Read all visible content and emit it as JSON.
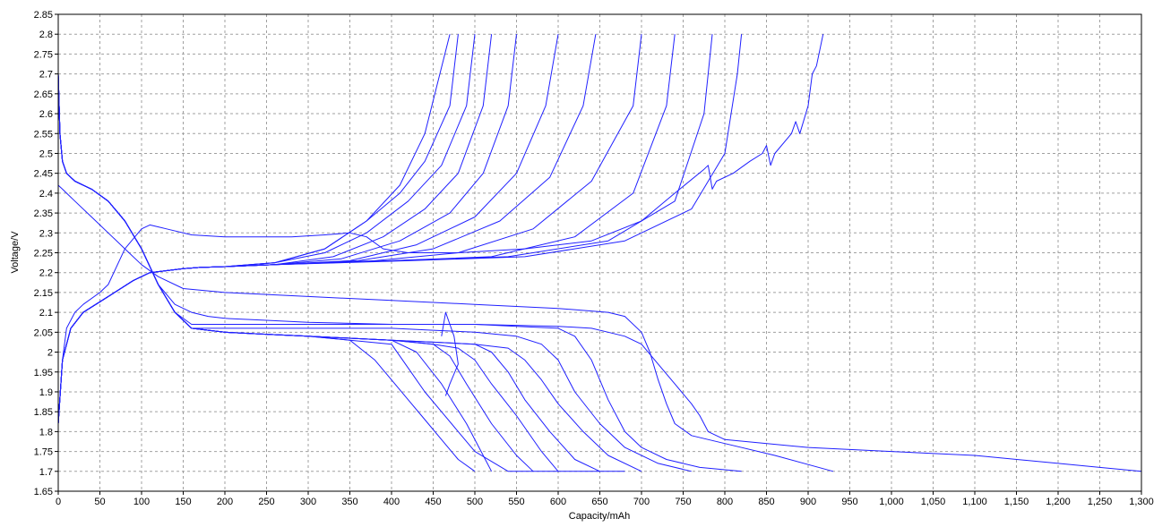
{
  "chart_data": {
    "type": "line",
    "title": "",
    "xlabel": "Capacity/mAh",
    "ylabel": "Voltage/V",
    "xlim": [
      0,
      1300
    ],
    "ylim": [
      1.65,
      2.85
    ],
    "grid": true,
    "line_color": "#2020ff",
    "x_ticks": [
      "0",
      "50",
      "100",
      "150",
      "200",
      "250",
      "300",
      "350",
      "400",
      "450",
      "500",
      "550",
      "600",
      "650",
      "700",
      "750",
      "800",
      "850",
      "900",
      "950",
      "1,000",
      "1,050",
      "1,100",
      "1,150",
      "1,200",
      "1,250",
      "1,300"
    ],
    "y_ticks": [
      "1.65",
      "1.7",
      "1.75",
      "1.8",
      "1.85",
      "1.9",
      "1.95",
      "2",
      "2.05",
      "2.1",
      "2.15",
      "2.2",
      "2.25",
      "2.3",
      "2.35",
      "2.4",
      "2.45",
      "2.5",
      "2.55",
      "2.6",
      "2.65",
      "2.7",
      "2.75",
      "2.8",
      "2.85"
    ],
    "series": [
      {
        "x": [
          0,
          5,
          15,
          30,
          60,
          90,
          110,
          130,
          150,
          170,
          200,
          260,
          320,
          370,
          410,
          440,
          470
        ],
        "y": [
          1.82,
          1.98,
          2.06,
          2.1,
          2.14,
          2.18,
          2.2,
          2.205,
          2.21,
          2.213,
          2.215,
          2.225,
          2.26,
          2.33,
          2.42,
          2.55,
          2.8
        ]
      },
      {
        "x": [
          0,
          5,
          15,
          30,
          60,
          90,
          110,
          130,
          150,
          170,
          200,
          260,
          320,
          370,
          410,
          440,
          470,
          480
        ],
        "y": [
          1.82,
          1.98,
          2.06,
          2.1,
          2.14,
          2.18,
          2.2,
          2.205,
          2.21,
          2.213,
          2.215,
          2.225,
          2.26,
          2.33,
          2.4,
          2.48,
          2.62,
          2.8
        ]
      },
      {
        "x": [
          0,
          5,
          15,
          30,
          60,
          90,
          110,
          130,
          150,
          170,
          200,
          260,
          320,
          370,
          420,
          460,
          490,
          500
        ],
        "y": [
          1.82,
          1.98,
          2.06,
          2.1,
          2.14,
          2.18,
          2.2,
          2.205,
          2.21,
          2.213,
          2.215,
          2.225,
          2.25,
          2.3,
          2.38,
          2.47,
          2.62,
          2.8
        ]
      },
      {
        "x": [
          0,
          5,
          15,
          30,
          60,
          90,
          110,
          130,
          150,
          170,
          200,
          260,
          330,
          390,
          440,
          480,
          510,
          520
        ],
        "y": [
          1.82,
          1.98,
          2.06,
          2.1,
          2.14,
          2.18,
          2.2,
          2.205,
          2.21,
          2.213,
          2.215,
          2.22,
          2.24,
          2.29,
          2.36,
          2.45,
          2.62,
          2.8
        ]
      },
      {
        "x": [
          0,
          5,
          15,
          30,
          60,
          90,
          110,
          130,
          150,
          170,
          200,
          260,
          340,
          410,
          470,
          510,
          540,
          550
        ],
        "y": [
          1.82,
          1.98,
          2.06,
          2.1,
          2.14,
          2.18,
          2.2,
          2.205,
          2.21,
          2.213,
          2.215,
          2.22,
          2.235,
          2.28,
          2.35,
          2.45,
          2.62,
          2.8
        ]
      },
      {
        "x": [
          0,
          5,
          15,
          30,
          60,
          90,
          110,
          130,
          150,
          170,
          200,
          260,
          350,
          430,
          500,
          550,
          585,
          600
        ],
        "y": [
          1.82,
          1.98,
          2.06,
          2.1,
          2.14,
          2.18,
          2.2,
          2.205,
          2.21,
          2.213,
          2.215,
          2.22,
          2.23,
          2.27,
          2.34,
          2.45,
          2.62,
          2.8
        ]
      },
      {
        "x": [
          0,
          5,
          15,
          30,
          60,
          90,
          110,
          130,
          150,
          170,
          200,
          260,
          360,
          450,
          530,
          590,
          630,
          645
        ],
        "y": [
          1.82,
          1.98,
          2.06,
          2.1,
          2.14,
          2.18,
          2.2,
          2.205,
          2.21,
          2.213,
          2.215,
          2.22,
          2.23,
          2.26,
          2.33,
          2.44,
          2.62,
          2.8
        ]
      },
      {
        "x": [
          0,
          5,
          15,
          30,
          60,
          90,
          110,
          130,
          150,
          170,
          200,
          260,
          380,
          480,
          570,
          640,
          690,
          700
        ],
        "y": [
          1.82,
          1.98,
          2.06,
          2.1,
          2.14,
          2.18,
          2.2,
          2.205,
          2.21,
          2.213,
          2.215,
          2.22,
          2.23,
          2.25,
          2.31,
          2.43,
          2.62,
          2.8
        ]
      },
      {
        "x": [
          0,
          5,
          15,
          30,
          60,
          90,
          110,
          130,
          150,
          170,
          200,
          260,
          400,
          520,
          620,
          690,
          730,
          740
        ],
        "y": [
          1.82,
          1.98,
          2.06,
          2.1,
          2.14,
          2.18,
          2.2,
          2.205,
          2.21,
          2.213,
          2.215,
          2.22,
          2.23,
          2.24,
          2.29,
          2.4,
          2.62,
          2.8
        ]
      },
      {
        "x": [
          0,
          5,
          15,
          30,
          60,
          90,
          110,
          130,
          150,
          170,
          200,
          260,
          400,
          540,
          660,
          740,
          775,
          785
        ],
        "y": [
          1.82,
          1.98,
          2.06,
          2.1,
          2.14,
          2.18,
          2.2,
          2.205,
          2.21,
          2.213,
          2.215,
          2.22,
          2.23,
          2.24,
          2.28,
          2.38,
          2.6,
          2.8
        ]
      },
      {
        "x": [
          0,
          5,
          15,
          30,
          60,
          90,
          110,
          130,
          150,
          170,
          200,
          260,
          420,
          560,
          680,
          760,
          800,
          815,
          820
        ],
        "y": [
          1.82,
          1.98,
          2.06,
          2.1,
          2.14,
          2.18,
          2.2,
          2.205,
          2.21,
          2.213,
          2.215,
          2.22,
          2.23,
          2.24,
          2.28,
          2.36,
          2.5,
          2.7,
          2.8
        ]
      },
      {
        "x": [
          0,
          5,
          10,
          20,
          30,
          50,
          60,
          80,
          100,
          110,
          130,
          160,
          200,
          240,
          280,
          320,
          350,
          370,
          390,
          420,
          480,
          560,
          640,
          700,
          740,
          775,
          780,
          785,
          790,
          810,
          830,
          845,
          850,
          855,
          860,
          880,
          885,
          890,
          900,
          905,
          910,
          918
        ],
        "y": [
          1.82,
          1.98,
          2.06,
          2.1,
          2.12,
          2.15,
          2.17,
          2.26,
          2.31,
          2.32,
          2.31,
          2.295,
          2.29,
          2.29,
          2.29,
          2.295,
          2.3,
          2.29,
          2.26,
          2.25,
          2.25,
          2.26,
          2.28,
          2.33,
          2.4,
          2.46,
          2.47,
          2.41,
          2.43,
          2.45,
          2.48,
          2.5,
          2.52,
          2.47,
          2.5,
          2.55,
          2.58,
          2.55,
          2.62,
          2.7,
          2.72,
          2.8
        ]
      },
      {
        "x": [
          0,
          2,
          5,
          10,
          20,
          40,
          60,
          80,
          100,
          120,
          140,
          160,
          180,
          200,
          250,
          300,
          350,
          400,
          420,
          440,
          460,
          480,
          500,
          540,
          580,
          620,
          680
        ],
        "y": [
          2.7,
          2.55,
          2.48,
          2.45,
          2.43,
          2.41,
          2.38,
          2.33,
          2.26,
          2.17,
          2.1,
          2.06,
          2.055,
          2.05,
          2.045,
          2.04,
          2.03,
          2.02,
          1.96,
          1.9,
          1.85,
          1.8,
          1.75,
          1.7,
          1.7,
          1.7,
          1.7
        ]
      },
      {
        "x": [
          0,
          2,
          5,
          10,
          20,
          40,
          60,
          80,
          100,
          120,
          140,
          160,
          180,
          200,
          250,
          300,
          350,
          380,
          400,
          420,
          440,
          460,
          480,
          500
        ],
        "y": [
          2.7,
          2.55,
          2.48,
          2.45,
          2.43,
          2.41,
          2.38,
          2.33,
          2.26,
          2.17,
          2.1,
          2.06,
          2.055,
          2.05,
          2.045,
          2.04,
          2.03,
          1.98,
          1.93,
          1.88,
          1.83,
          1.78,
          1.73,
          1.7
        ]
      },
      {
        "x": [
          0,
          2,
          5,
          10,
          20,
          40,
          60,
          80,
          100,
          120,
          140,
          160,
          180,
          200,
          250,
          300,
          350,
          400,
          430,
          460,
          490,
          510,
          520
        ],
        "y": [
          2.7,
          2.55,
          2.48,
          2.45,
          2.43,
          2.41,
          2.38,
          2.33,
          2.26,
          2.17,
          2.1,
          2.06,
          2.055,
          2.05,
          2.045,
          2.04,
          2.035,
          2.03,
          2.0,
          1.92,
          1.82,
          1.74,
          1.7
        ]
      },
      {
        "x": [
          0,
          2,
          5,
          10,
          20,
          40,
          60,
          80,
          100,
          120,
          140,
          160,
          180,
          200,
          250,
          300,
          350,
          400,
          450,
          470,
          490,
          520,
          550,
          570
        ],
        "y": [
          2.7,
          2.55,
          2.48,
          2.45,
          2.43,
          2.41,
          2.38,
          2.33,
          2.26,
          2.17,
          2.1,
          2.06,
          2.055,
          2.05,
          2.045,
          2.04,
          2.035,
          2.03,
          2.02,
          1.99,
          1.92,
          1.82,
          1.74,
          1.7
        ]
      },
      {
        "x": [
          0,
          2,
          5,
          10,
          20,
          40,
          60,
          80,
          100,
          120,
          140,
          160,
          180,
          200,
          250,
          300,
          350,
          400,
          450,
          480,
          500,
          520,
          550,
          580,
          600
        ],
        "y": [
          2.7,
          2.55,
          2.48,
          2.45,
          2.43,
          2.41,
          2.38,
          2.33,
          2.26,
          2.17,
          2.1,
          2.06,
          2.055,
          2.05,
          2.045,
          2.04,
          2.035,
          2.03,
          2.02,
          2.01,
          1.98,
          1.92,
          1.84,
          1.75,
          1.7
        ]
      },
      {
        "x": [
          0,
          2,
          5,
          10,
          20,
          40,
          60,
          80,
          100,
          120,
          140,
          160,
          180,
          200,
          250,
          300,
          350,
          400,
          450,
          500,
          520,
          540,
          560,
          590,
          620,
          650
        ],
        "y": [
          2.7,
          2.55,
          2.48,
          2.45,
          2.43,
          2.41,
          2.38,
          2.33,
          2.26,
          2.17,
          2.1,
          2.06,
          2.055,
          2.05,
          2.045,
          2.04,
          2.035,
          2.03,
          2.025,
          2.02,
          2.0,
          1.95,
          1.88,
          1.8,
          1.73,
          1.7
        ]
      },
      {
        "x": [
          0,
          2,
          5,
          10,
          20,
          40,
          60,
          80,
          100,
          120,
          140,
          160,
          180,
          200,
          250,
          300,
          350,
          400,
          450,
          500,
          540,
          560,
          580,
          600,
          630,
          660,
          700
        ],
        "y": [
          2.7,
          2.55,
          2.48,
          2.45,
          2.43,
          2.41,
          2.38,
          2.33,
          2.26,
          2.17,
          2.1,
          2.06,
          2.055,
          2.05,
          2.045,
          2.04,
          2.035,
          2.03,
          2.025,
          2.02,
          2.01,
          1.98,
          1.93,
          1.87,
          1.8,
          1.74,
          1.7
        ]
      },
      {
        "x": [
          0,
          2,
          5,
          10,
          20,
          40,
          60,
          80,
          100,
          120,
          140,
          160,
          180,
          200,
          250,
          300,
          350,
          400,
          450,
          500,
          550,
          580,
          600,
          620,
          650,
          680,
          720,
          760
        ],
        "y": [
          2.7,
          2.55,
          2.48,
          2.45,
          2.43,
          2.41,
          2.38,
          2.33,
          2.26,
          2.17,
          2.1,
          2.06,
          2.06,
          2.06,
          2.06,
          2.06,
          2.06,
          2.06,
          2.055,
          2.05,
          2.04,
          2.02,
          1.98,
          1.9,
          1.82,
          1.76,
          1.72,
          1.7
        ]
      },
      {
        "x": [
          0,
          2,
          5,
          10,
          20,
          40,
          60,
          80,
          100,
          120,
          140,
          160,
          180,
          200,
          300,
          400,
          500,
          550,
          600,
          620,
          640,
          660,
          680,
          700,
          730,
          770,
          820
        ],
        "y": [
          2.7,
          2.55,
          2.48,
          2.45,
          2.43,
          2.41,
          2.38,
          2.33,
          2.26,
          2.17,
          2.1,
          2.07,
          2.07,
          2.07,
          2.07,
          2.07,
          2.07,
          2.065,
          2.06,
          2.04,
          1.98,
          1.88,
          1.8,
          1.76,
          1.73,
          1.71,
          1.7
        ]
      },
      {
        "x": [
          0,
          5,
          10,
          20,
          40,
          60,
          80,
          100,
          120,
          150,
          200,
          250,
          300,
          400,
          500,
          600,
          660,
          680,
          700,
          710,
          720,
          730,
          740,
          760,
          800,
          860,
          930
        ],
        "y": [
          2.42,
          2.41,
          2.4,
          2.38,
          2.34,
          2.3,
          2.26,
          2.22,
          2.19,
          2.16,
          2.15,
          2.145,
          2.14,
          2.13,
          2.12,
          2.11,
          2.1,
          2.09,
          2.05,
          2.0,
          1.93,
          1.87,
          1.82,
          1.79,
          1.77,
          1.74,
          1.7
        ]
      },
      {
        "x": [
          0,
          2,
          5,
          10,
          20,
          40,
          60,
          80,
          100,
          120,
          140,
          160,
          180,
          200,
          250,
          300,
          400,
          500,
          600,
          640,
          660,
          680,
          700,
          720,
          740,
          760,
          770,
          780,
          800,
          900,
          1000,
          1100,
          1200,
          1250,
          1300
        ],
        "y": [
          2.7,
          2.55,
          2.48,
          2.45,
          2.43,
          2.41,
          2.38,
          2.33,
          2.26,
          2.17,
          2.12,
          2.1,
          2.09,
          2.085,
          2.08,
          2.075,
          2.07,
          2.07,
          2.065,
          2.06,
          2.05,
          2.04,
          2.02,
          1.97,
          1.92,
          1.87,
          1.84,
          1.8,
          1.78,
          1.76,
          1.75,
          1.74,
          1.72,
          1.71,
          1.7
        ]
      },
      {
        "x": [
          460,
          465,
          470,
          475,
          480,
          470,
          465
        ],
        "y": [
          2.04,
          2.1,
          2.07,
          2.04,
          1.97,
          1.92,
          1.89
        ]
      }
    ]
  }
}
